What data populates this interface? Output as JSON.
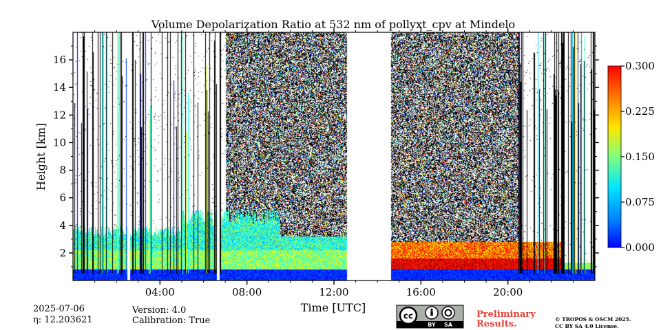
{
  "chart_data": {
    "type": "heatmap",
    "title": "Volume Depolarization Ratio at 532 nm of pollyxt_cpv at Mindelo",
    "xlabel": "Time [UTC]",
    "ylabel": "Height [km]",
    "xlim": [
      0,
      24
    ],
    "ylim": [
      0,
      18
    ],
    "x_ticks": [
      "04:00",
      "08:00",
      "12:00",
      "16:00",
      "20:00"
    ],
    "x_tick_values": [
      4,
      8,
      12,
      16,
      20
    ],
    "y_ticks": [
      "2",
      "4",
      "6",
      "8",
      "10",
      "12",
      "14",
      "16"
    ],
    "y_tick_values": [
      2,
      4,
      6,
      8,
      10,
      12,
      14,
      16
    ],
    "colorbar": {
      "range": [
        0.0,
        0.3
      ],
      "ticks": [
        "0.000",
        "0.075",
        "0.150",
        "0.225",
        "0.300"
      ],
      "tick_values": [
        0.0,
        0.075,
        0.15,
        0.225,
        0.3
      ],
      "colormap": "jet"
    },
    "no_data_gaps_hours": [
      [
        12.6,
        14.6
      ],
      [
        2.5,
        2.62
      ],
      [
        6.6,
        6.72
      ]
    ],
    "regions": [
      {
        "name": "surface layer",
        "time": [
          0,
          24
        ],
        "height_km": [
          0,
          0.8
        ],
        "depol": 0.05
      },
      {
        "name": "dust layer morning",
        "time": [
          0,
          12.6
        ],
        "height_km": [
          0.8,
          3.5
        ],
        "depol": 0.13
      },
      {
        "name": "dust layer evening",
        "time": [
          14.6,
          22.5
        ],
        "height_km": [
          0.8,
          2.8
        ],
        "depol": 0.26
      },
      {
        "name": "daytime noise",
        "time": [
          7.0,
          12.6
        ],
        "height_km": [
          3,
          18
        ],
        "depol": "noisy"
      },
      {
        "name": "daytime noise afternoon",
        "time": [
          14.6,
          20.5
        ],
        "height_km": [
          2.8,
          18
        ],
        "depol": "noisy"
      }
    ]
  },
  "footer": {
    "date": "2025-07-06",
    "eta": "η: 12.203621",
    "version": "Version: 4.0",
    "calibration": "Calibration: True",
    "preliminary_line1": "Preliminary",
    "preliminary_line2": "Results.",
    "copyright_line1": "© TROPOS & OSCM 2025.",
    "copyright_line2": "CC BY SA 4.0 License.",
    "license_badge": {
      "cc": "cc",
      "by": "BY",
      "sa": "SA"
    }
  }
}
